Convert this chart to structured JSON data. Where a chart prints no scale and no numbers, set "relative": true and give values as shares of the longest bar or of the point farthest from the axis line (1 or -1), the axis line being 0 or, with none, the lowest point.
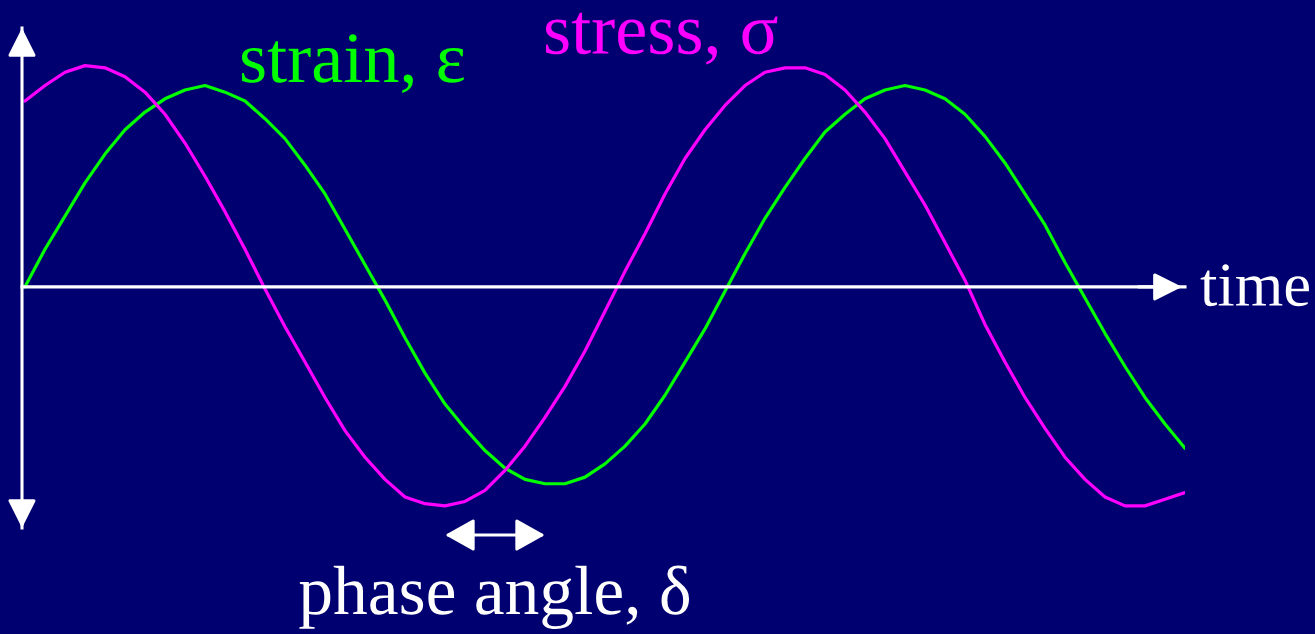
{
  "chart_data": {
    "type": "line",
    "relative": true,
    "xlabel": "time",
    "categories": [
      null,
      null,
      null,
      null,
      null,
      null,
      null,
      null,
      null,
      null,
      null,
      null,
      null,
      null,
      null,
      null,
      null,
      null,
      null,
      null,
      null,
      null,
      null,
      null,
      null,
      null,
      null,
      null,
      null,
      null,
      null,
      null,
      null,
      null,
      null,
      null,
      null,
      null,
      null,
      null,
      null,
      null,
      null,
      null,
      null,
      null,
      null,
      null,
      null,
      null,
      null,
      null,
      null,
      null,
      null,
      null,
      null,
      null,
      null
    ],
    "series": [
      {
        "name": "strain, ε",
        "color": "#00ff00",
        "values": [
          0.0,
          0.17,
          0.32,
          0.47,
          0.6,
          0.71,
          0.79,
          0.85,
          0.89,
          0.91,
          0.88,
          0.84,
          0.76,
          0.67,
          0.55,
          0.42,
          0.26,
          0.1,
          -0.06,
          -0.23,
          -0.39,
          -0.53,
          -0.64,
          -0.74,
          -0.82,
          -0.87,
          -0.89,
          -0.89,
          -0.86,
          -0.8,
          -0.72,
          -0.62,
          -0.49,
          -0.34,
          -0.19,
          -0.02,
          0.15,
          0.31,
          0.45,
          0.58,
          0.7,
          0.78,
          0.85,
          0.89,
          0.91,
          0.89,
          0.85,
          0.78,
          0.68,
          0.56,
          0.42,
          0.28,
          0.11,
          -0.05,
          -0.21,
          -0.36,
          -0.5,
          -0.62,
          -0.73
        ]
      },
      {
        "name": "stress, σ",
        "color": "#ff00ff",
        "values": [
          0.84,
          0.91,
          0.97,
          1.0,
          0.99,
          0.95,
          0.88,
          0.78,
          0.65,
          0.5,
          0.34,
          0.17,
          -0.01,
          -0.18,
          -0.34,
          -0.5,
          -0.65,
          -0.77,
          -0.87,
          -0.95,
          -0.98,
          -0.99,
          -0.97,
          -0.92,
          -0.83,
          -0.72,
          -0.59,
          -0.45,
          -0.29,
          -0.11,
          0.07,
          0.24,
          0.42,
          0.58,
          0.71,
          0.82,
          0.91,
          0.97,
          0.99,
          0.99,
          0.96,
          0.89,
          0.79,
          0.67,
          0.52,
          0.37,
          0.2,
          0.03,
          -0.17,
          -0.34,
          -0.5,
          -0.64,
          -0.77,
          -0.87,
          -0.95,
          -0.99,
          -0.99,
          -0.96,
          -0.93
        ]
      }
    ],
    "annotations": [
      "phase angle, δ"
    ]
  }
}
